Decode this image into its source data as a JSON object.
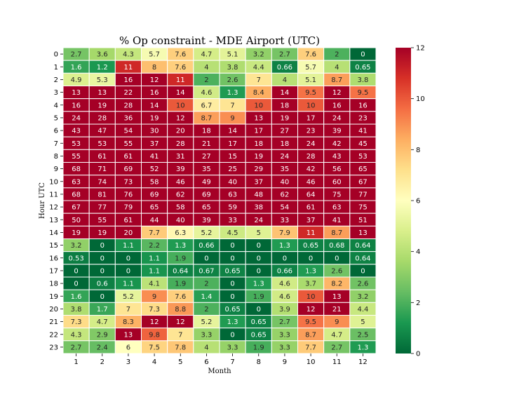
{
  "chart_data": {
    "type": "heatmap",
    "title": "% Op constraint - MDE Airport (UTC)",
    "xlabel": "Month",
    "ylabel": "Hour UTC",
    "x_categories": [
      "1",
      "2",
      "3",
      "4",
      "5",
      "6",
      "7",
      "8",
      "9",
      "10",
      "11",
      "12"
    ],
    "y_categories": [
      "0",
      "1",
      "2",
      "3",
      "4",
      "5",
      "6",
      "7",
      "8",
      "9",
      "10",
      "11",
      "12",
      "13",
      "14",
      "15",
      "16",
      "17",
      "18",
      "19",
      "20",
      "21",
      "22",
      "23"
    ],
    "values": [
      [
        "2.7",
        "3.6",
        "4.3",
        "5.7",
        "7.6",
        "4.7",
        "5.1",
        "3.2",
        "2.7",
        "7.6",
        "2",
        "0"
      ],
      [
        "1.6",
        "1.2",
        "11",
        "8",
        "7.6",
        "4",
        "3.8",
        "4.4",
        "0.66",
        "5.7",
        "4",
        "0.65"
      ],
      [
        "4.9",
        "5.3",
        "16",
        "12",
        "11",
        "2",
        "2.6",
        "7",
        "4",
        "5.1",
        "8.7",
        "3.8"
      ],
      [
        "13",
        "13",
        "22",
        "16",
        "14",
        "4.6",
        "1.3",
        "8.4",
        "14",
        "9.5",
        "12",
        "9.5"
      ],
      [
        "16",
        "19",
        "28",
        "14",
        "10",
        "6.7",
        "7",
        "10",
        "18",
        "10",
        "16",
        "16"
      ],
      [
        "24",
        "28",
        "36",
        "19",
        "12",
        "8.7",
        "9",
        "13",
        "19",
        "17",
        "24",
        "23"
      ],
      [
        "43",
        "47",
        "54",
        "30",
        "20",
        "18",
        "14",
        "17",
        "27",
        "23",
        "39",
        "41"
      ],
      [
        "53",
        "53",
        "55",
        "37",
        "28",
        "21",
        "17",
        "18",
        "18",
        "24",
        "42",
        "45"
      ],
      [
        "55",
        "61",
        "61",
        "41",
        "31",
        "27",
        "15",
        "19",
        "24",
        "28",
        "43",
        "53"
      ],
      [
        "68",
        "71",
        "69",
        "52",
        "39",
        "35",
        "25",
        "29",
        "35",
        "42",
        "56",
        "65"
      ],
      [
        "63",
        "74",
        "73",
        "58",
        "46",
        "49",
        "40",
        "37",
        "40",
        "46",
        "60",
        "67"
      ],
      [
        "68",
        "81",
        "76",
        "69",
        "62",
        "69",
        "63",
        "48",
        "62",
        "64",
        "75",
        "77"
      ],
      [
        "67",
        "77",
        "79",
        "65",
        "58",
        "65",
        "59",
        "38",
        "54",
        "61",
        "63",
        "75"
      ],
      [
        "50",
        "55",
        "61",
        "44",
        "40",
        "39",
        "33",
        "24",
        "33",
        "37",
        "41",
        "51"
      ],
      [
        "19",
        "19",
        "20",
        "7.7",
        "6.3",
        "5.2",
        "4.5",
        "5",
        "7.9",
        "11",
        "8.7",
        "13"
      ],
      [
        "3.2",
        "0",
        "1.1",
        "2.2",
        "1.3",
        "0.66",
        "0",
        "0",
        "1.3",
        "0.65",
        "0.68",
        "0.64"
      ],
      [
        "0.53",
        "0",
        "0",
        "1.1",
        "1.9",
        "0",
        "0",
        "0",
        "0",
        "0",
        "0",
        "0.64"
      ],
      [
        "0",
        "0",
        "0",
        "1.1",
        "0.64",
        "0.67",
        "0.65",
        "0",
        "0.66",
        "1.3",
        "2.6",
        "0"
      ],
      [
        "0",
        "0.6",
        "1.1",
        "4.1",
        "1.9",
        "2",
        "0",
        "1.3",
        "4.6",
        "3.7",
        "8.2",
        "2.6"
      ],
      [
        "1.6",
        "0",
        "5.2",
        "9",
        "7.6",
        "1.4",
        "0",
        "1.9",
        "4.6",
        "10",
        "13",
        "3.2"
      ],
      [
        "3.8",
        "1.7",
        "7",
        "7.3",
        "8.8",
        "2",
        "0.65",
        "0",
        "3.9",
        "12",
        "21",
        "4.4"
      ],
      [
        "7.3",
        "4.7",
        "8.3",
        "12",
        "12",
        "5.2",
        "1.3",
        "0.65",
        "2.7",
        "9.5",
        "9",
        "5"
      ],
      [
        "4.3",
        "2.9",
        "13",
        "9.8",
        "7",
        "3.3",
        "0",
        "0.65",
        "3.3",
        "8.7",
        "4.7",
        "2.5"
      ],
      [
        "2.7",
        "2.4",
        "6",
        "7.5",
        "7.8",
        "4",
        "3.3",
        "1.9",
        "3.3",
        "7.7",
        "2.7",
        "1.3"
      ]
    ],
    "color_scale": {
      "colormap": "RdYlGn_r",
      "vmin": 0,
      "vmax": 12,
      "ticks": [
        "0",
        "2",
        "4",
        "6",
        "8",
        "10",
        "12"
      ]
    },
    "colormap_stops": [
      "#006837",
      "#1a9850",
      "#66bd63",
      "#a6d96a",
      "#d9ef8b",
      "#ffffbf",
      "#fee08b",
      "#fdae61",
      "#f46d43",
      "#d73027",
      "#a50026"
    ],
    "cell_border_color": "#ffffff",
    "grid": false,
    "legend": "colorbar-right"
  }
}
